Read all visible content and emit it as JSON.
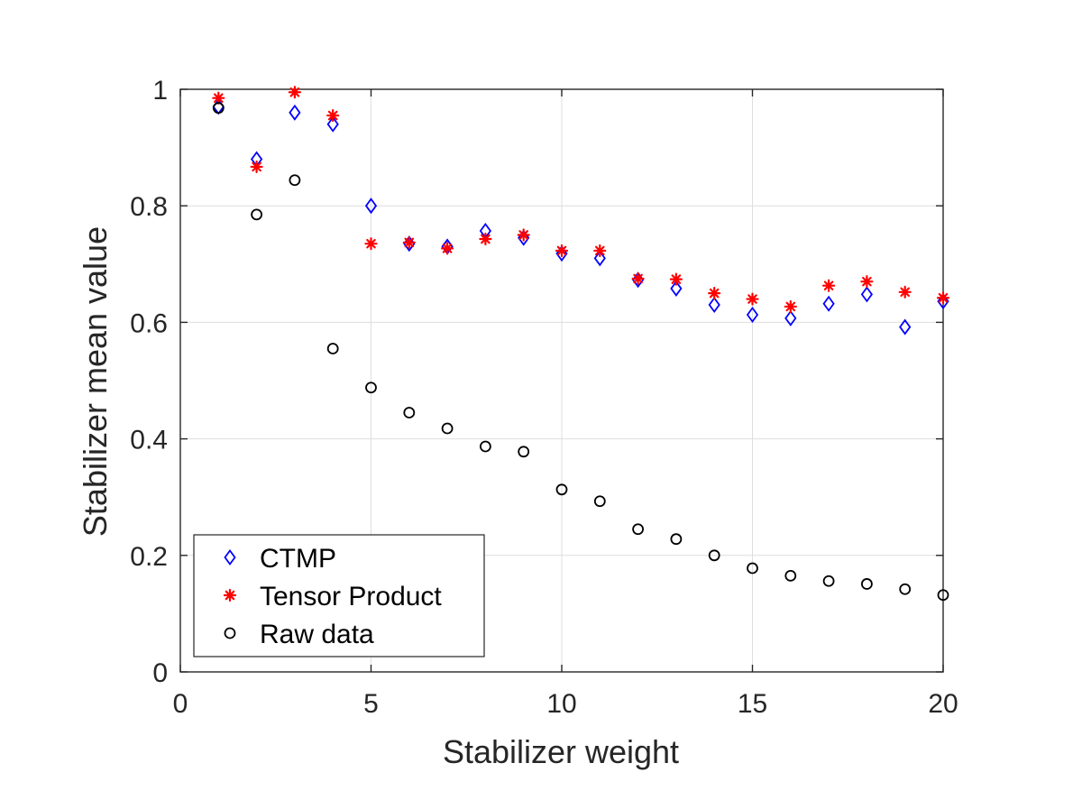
{
  "chart_data": {
    "type": "scatter",
    "title": "",
    "xlabel": "Stabilizer weight",
    "ylabel": "Stabilizer mean value",
    "xlim": [
      0,
      20
    ],
    "ylim": [
      0,
      1
    ],
    "xticks": [
      0,
      5,
      10,
      15,
      20
    ],
    "xtick_labels": [
      "0",
      "5",
      "10",
      "15",
      "20"
    ],
    "yticks": [
      0,
      0.2,
      0.4,
      0.6,
      0.8,
      1
    ],
    "ytick_labels": [
      "0",
      "0.2",
      "0.4",
      "0.6",
      "0.8",
      "1"
    ],
    "grid": true,
    "legend_position": "bottom-left",
    "x": [
      1,
      2,
      3,
      4,
      5,
      6,
      7,
      8,
      9,
      10,
      11,
      12,
      13,
      14,
      15,
      16,
      17,
      18,
      19,
      20
    ],
    "series": [
      {
        "name": "CTMP",
        "marker": "diamond",
        "color": "#0000ff",
        "values": [
          0.97,
          0.88,
          0.96,
          0.94,
          0.8,
          0.735,
          0.73,
          0.757,
          0.745,
          0.718,
          0.71,
          0.673,
          0.658,
          0.63,
          0.613,
          0.607,
          0.632,
          0.648,
          0.592,
          0.636
        ]
      },
      {
        "name": "Tensor Product",
        "marker": "asterisk",
        "color": "#ff0000",
        "values": [
          0.985,
          0.867,
          0.995,
          0.955,
          0.735,
          0.737,
          0.727,
          0.743,
          0.75,
          0.723,
          0.723,
          0.675,
          0.674,
          0.65,
          0.64,
          0.627,
          0.663,
          0.67,
          0.652,
          0.642
        ]
      },
      {
        "name": "Raw data",
        "marker": "circle",
        "color": "#000000",
        "values": [
          0.968,
          0.785,
          0.844,
          0.555,
          0.488,
          0.445,
          0.418,
          0.387,
          0.378,
          0.313,
          0.293,
          0.245,
          0.228,
          0.2,
          0.178,
          0.165,
          0.156,
          0.151,
          0.142,
          0.132
        ]
      }
    ]
  }
}
